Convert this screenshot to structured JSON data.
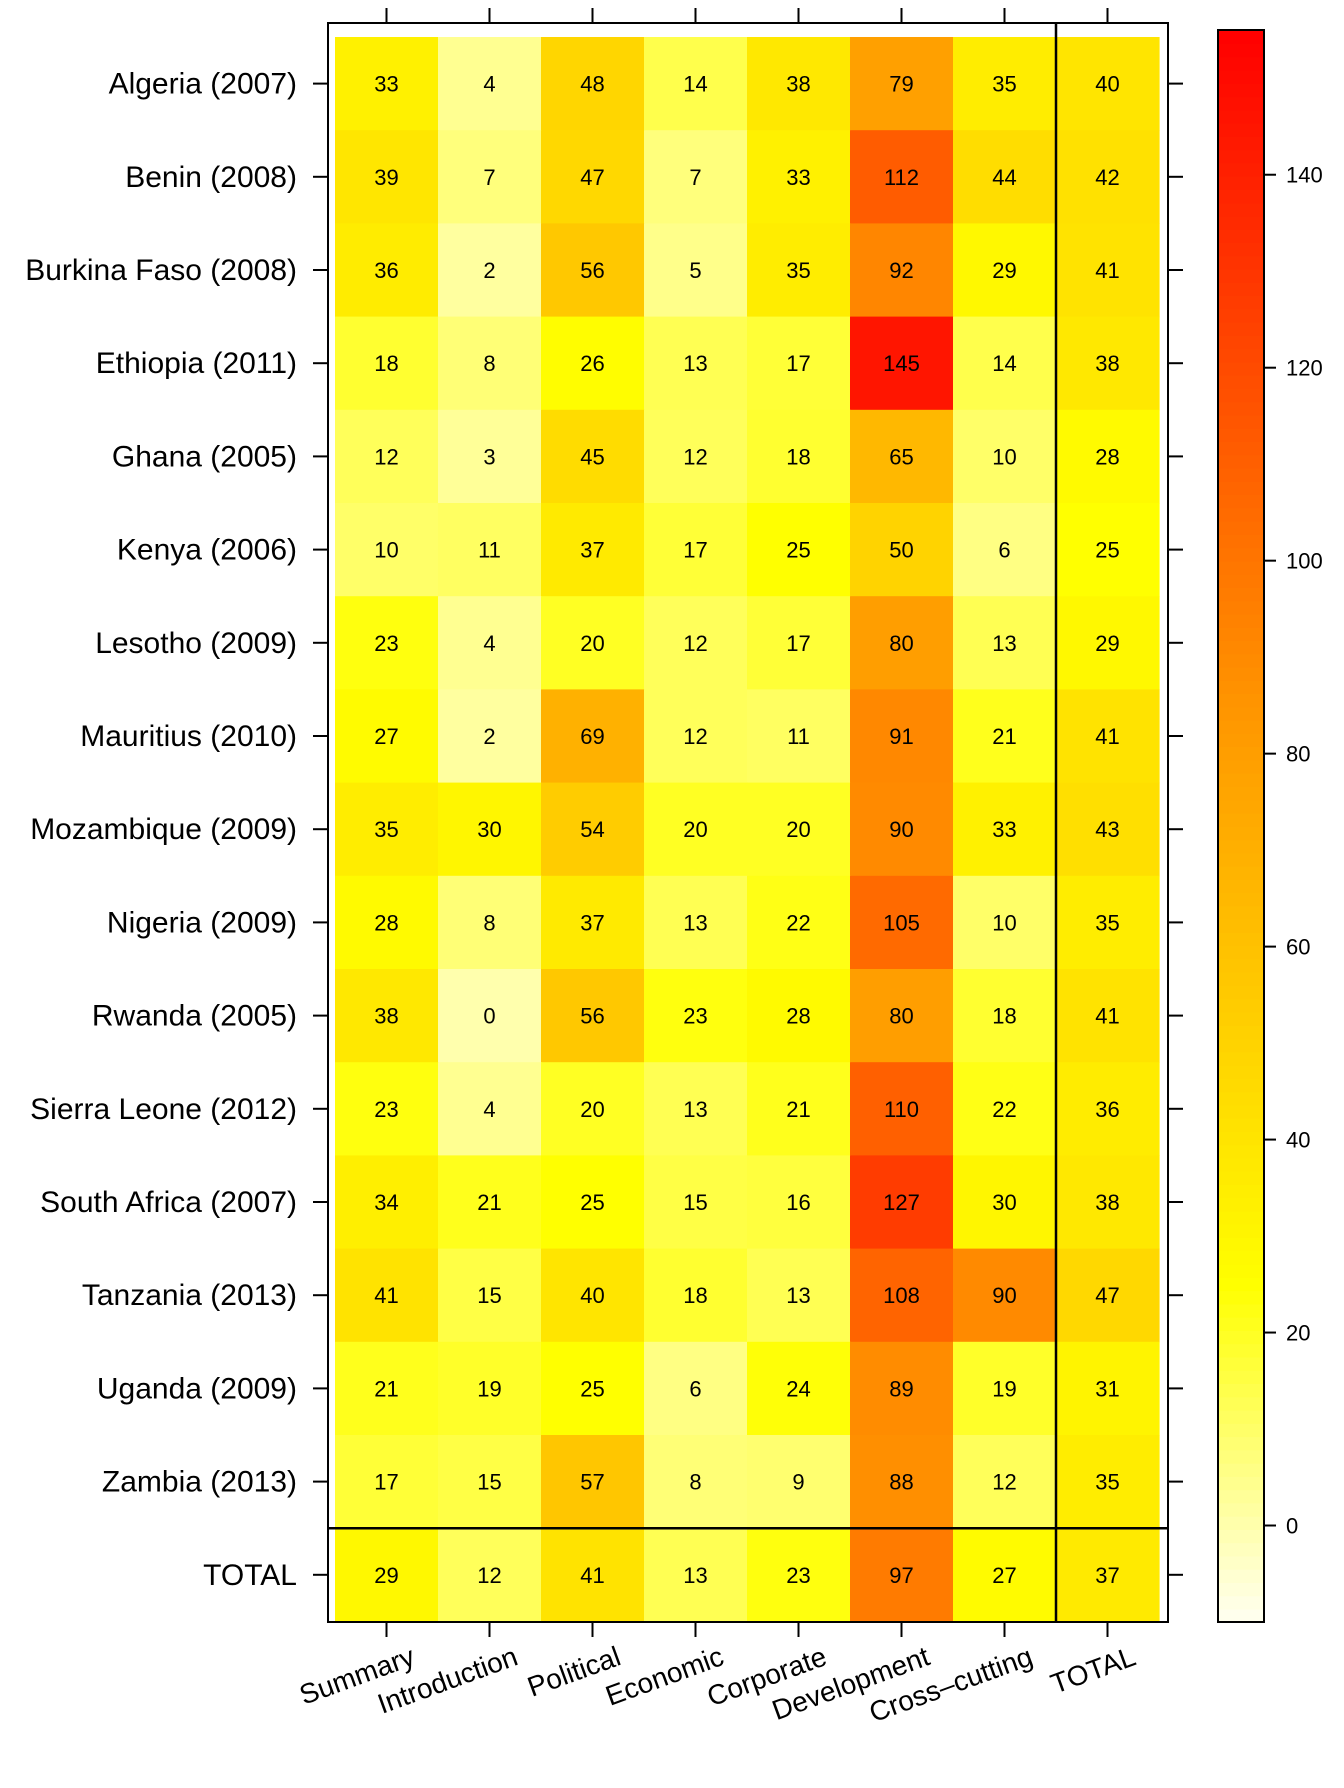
{
  "chart_data": {
    "type": "heatmap",
    "title": "",
    "xlabel": "",
    "ylabel": "",
    "rows": [
      "Algeria (2007)",
      "Benin (2008)",
      "Burkina Faso (2008)",
      "Ethiopia (2011)",
      "Ghana (2005)",
      "Kenya (2006)",
      "Lesotho (2009)",
      "Mauritius (2010)",
      "Mozambique (2009)",
      "Nigeria (2009)",
      "Rwanda (2005)",
      "Sierra Leone (2012)",
      "South Africa (2007)",
      "Tanzania (2013)",
      "Uganda (2009)",
      "Zambia (2013)",
      "TOTAL"
    ],
    "columns": [
      "Summary",
      "Introduction",
      "Political",
      "Economic",
      "Corporate",
      "Development",
      "Cross–cutting",
      "TOTAL"
    ],
    "values": [
      [
        33,
        4,
        48,
        14,
        38,
        79,
        35,
        40
      ],
      [
        39,
        7,
        47,
        7,
        33,
        112,
        44,
        42
      ],
      [
        36,
        2,
        56,
        5,
        35,
        92,
        29,
        41
      ],
      [
        18,
        8,
        26,
        13,
        17,
        145,
        14,
        38
      ],
      [
        12,
        3,
        45,
        12,
        18,
        65,
        10,
        28
      ],
      [
        10,
        11,
        37,
        17,
        25,
        50,
        6,
        25
      ],
      [
        23,
        4,
        20,
        12,
        17,
        80,
        13,
        29
      ],
      [
        27,
        2,
        69,
        12,
        11,
        91,
        21,
        41
      ],
      [
        35,
        30,
        54,
        20,
        20,
        90,
        33,
        43
      ],
      [
        28,
        8,
        37,
        13,
        22,
        105,
        10,
        35
      ],
      [
        38,
        0,
        56,
        23,
        28,
        80,
        18,
        41
      ],
      [
        23,
        4,
        20,
        13,
        21,
        110,
        22,
        36
      ],
      [
        34,
        21,
        25,
        15,
        16,
        127,
        30,
        38
      ],
      [
        41,
        15,
        40,
        18,
        13,
        108,
        90,
        47
      ],
      [
        21,
        19,
        25,
        6,
        24,
        89,
        19,
        31
      ],
      [
        17,
        15,
        57,
        8,
        9,
        88,
        12,
        35
      ],
      [
        29,
        12,
        41,
        13,
        23,
        97,
        27,
        37
      ]
    ],
    "colorbar": {
      "ticks": [
        0,
        20,
        40,
        60,
        80,
        100,
        120,
        140
      ],
      "range": [
        -10,
        155
      ]
    },
    "colors": {
      "low": "#fffff2",
      "mid_yellow": "#ffff00",
      "orange": "#ff9500",
      "high": "#ff0000"
    },
    "grid": false,
    "legend": "right"
  }
}
